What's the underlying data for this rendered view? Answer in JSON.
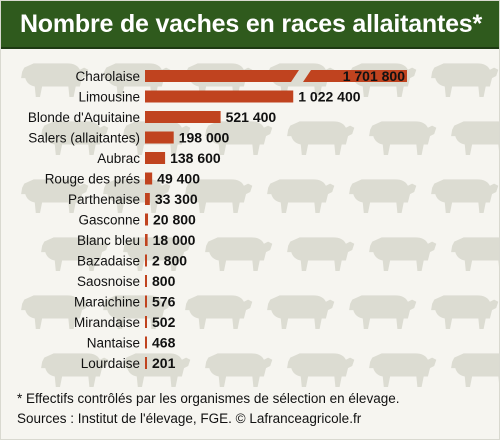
{
  "title": "Nombre de vaches en races allaitantes*",
  "footnote": {
    "line1": "* Effectifs contrôlés par les organismes de sélection en élevage.",
    "line2": "Sources : Institut de l'élevage, FGE. © Lafranceagricole.fr"
  },
  "colors": {
    "title_bar": "#2f5a1d",
    "bar": "#c0431f",
    "background": "#f6f5f0",
    "cow_silhouette": "#dcdcd2"
  },
  "chart_data": {
    "type": "bar",
    "orientation": "horizontal",
    "broken_axis": true,
    "categories": [
      "Charolaise",
      "Limousine",
      "Blonde d'Aquitaine",
      "Salers (allaitantes)",
      "Aubrac",
      "Rouge des prés",
      "Parthenaise",
      "Gasconne",
      "Blanc bleu",
      "Bazadaise",
      "Saosnoise",
      "Maraichine",
      "Mirandaise",
      "Nantaise",
      "Lourdaise"
    ],
    "values": [
      1701800,
      1022400,
      521400,
      198000,
      138600,
      49400,
      33300,
      20800,
      18000,
      2800,
      800,
      576,
      502,
      468,
      201
    ],
    "value_labels": [
      "1 701 800",
      "1 022 400",
      "521 400",
      "198 000",
      "138 600",
      "49 400",
      "33 300",
      "20 800",
      "18 000",
      "2 800",
      "800",
      "576",
      "502",
      "468",
      "201"
    ],
    "title": "Nombre de vaches en races allaitantes*",
    "xlabel": "",
    "ylabel": ""
  }
}
